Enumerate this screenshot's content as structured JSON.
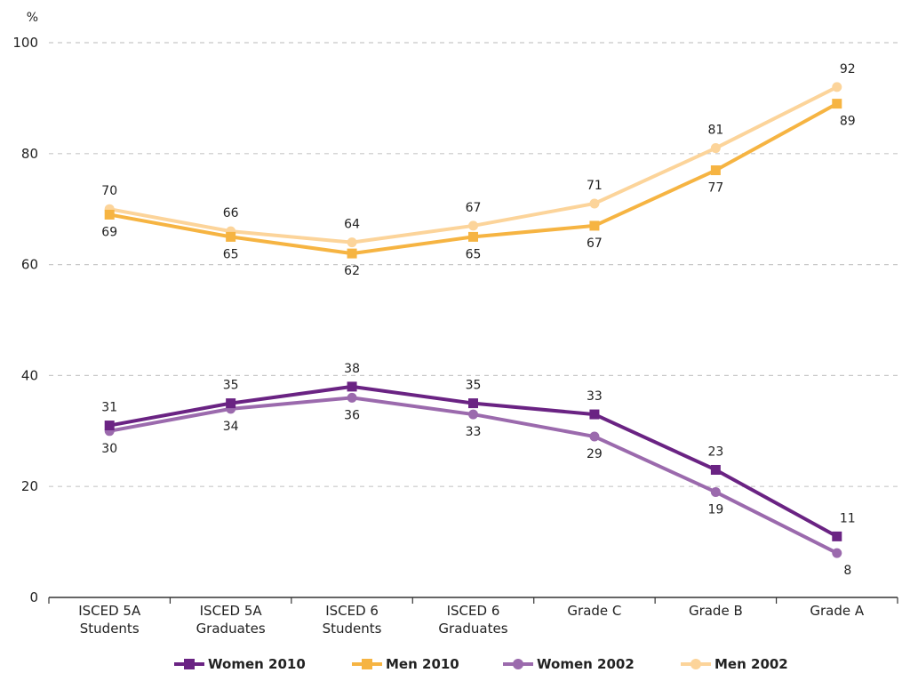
{
  "chart_data": {
    "type": "line",
    "ylabel": "%",
    "ylim": [
      0,
      100
    ],
    "yticks": [
      "0",
      "20",
      "40",
      "60",
      "80",
      "100"
    ],
    "grid": "horizontal-dashed",
    "legend_position": "bottom",
    "categories": [
      [
        "ISCED 5A",
        "Students"
      ],
      [
        "ISCED 5A",
        "Graduates"
      ],
      [
        "ISCED 6",
        "Students"
      ],
      [
        "ISCED 6",
        "Graduates"
      ],
      [
        "Grade C"
      ],
      [
        "Grade B"
      ],
      [
        "Grade A"
      ]
    ],
    "series": [
      {
        "name": "Women 2010",
        "color": "#6a2383",
        "marker": "square",
        "values": [
          31,
          35,
          38,
          35,
          33,
          23,
          11
        ],
        "labels": [
          "31",
          "35",
          "38",
          "35",
          "33",
          "23",
          "11"
        ],
        "label_side": [
          "above",
          "above",
          "above",
          "above",
          "above",
          "above",
          "above"
        ]
      },
      {
        "name": "Men 2010",
        "color": "#f6b442",
        "marker": "square",
        "values": [
          69,
          65,
          62,
          65,
          67,
          77,
          89
        ],
        "labels": [
          "69",
          "65",
          "62",
          "65",
          "67",
          "77",
          "89"
        ],
        "label_side": [
          "below",
          "below",
          "below",
          "below",
          "below",
          "below",
          "below"
        ]
      },
      {
        "name": "Women 2002",
        "color": "#9b6aad",
        "marker": "circle",
        "values": [
          30,
          34,
          36,
          33,
          29,
          19,
          8
        ],
        "labels": [
          "30",
          "34",
          "36",
          "33",
          "29",
          "19",
          "8"
        ],
        "label_side": [
          "below",
          "below",
          "below",
          "below",
          "below",
          "below",
          "below"
        ]
      },
      {
        "name": "Men 2002",
        "color": "#fcd49a",
        "marker": "circle",
        "values": [
          70,
          66,
          64,
          67,
          71,
          81,
          92
        ],
        "labels": [
          "70",
          "66",
          "64",
          "67",
          "71",
          "81",
          "92"
        ],
        "label_side": [
          "above",
          "above",
          "above",
          "above",
          "above",
          "above",
          "above"
        ]
      }
    ]
  }
}
